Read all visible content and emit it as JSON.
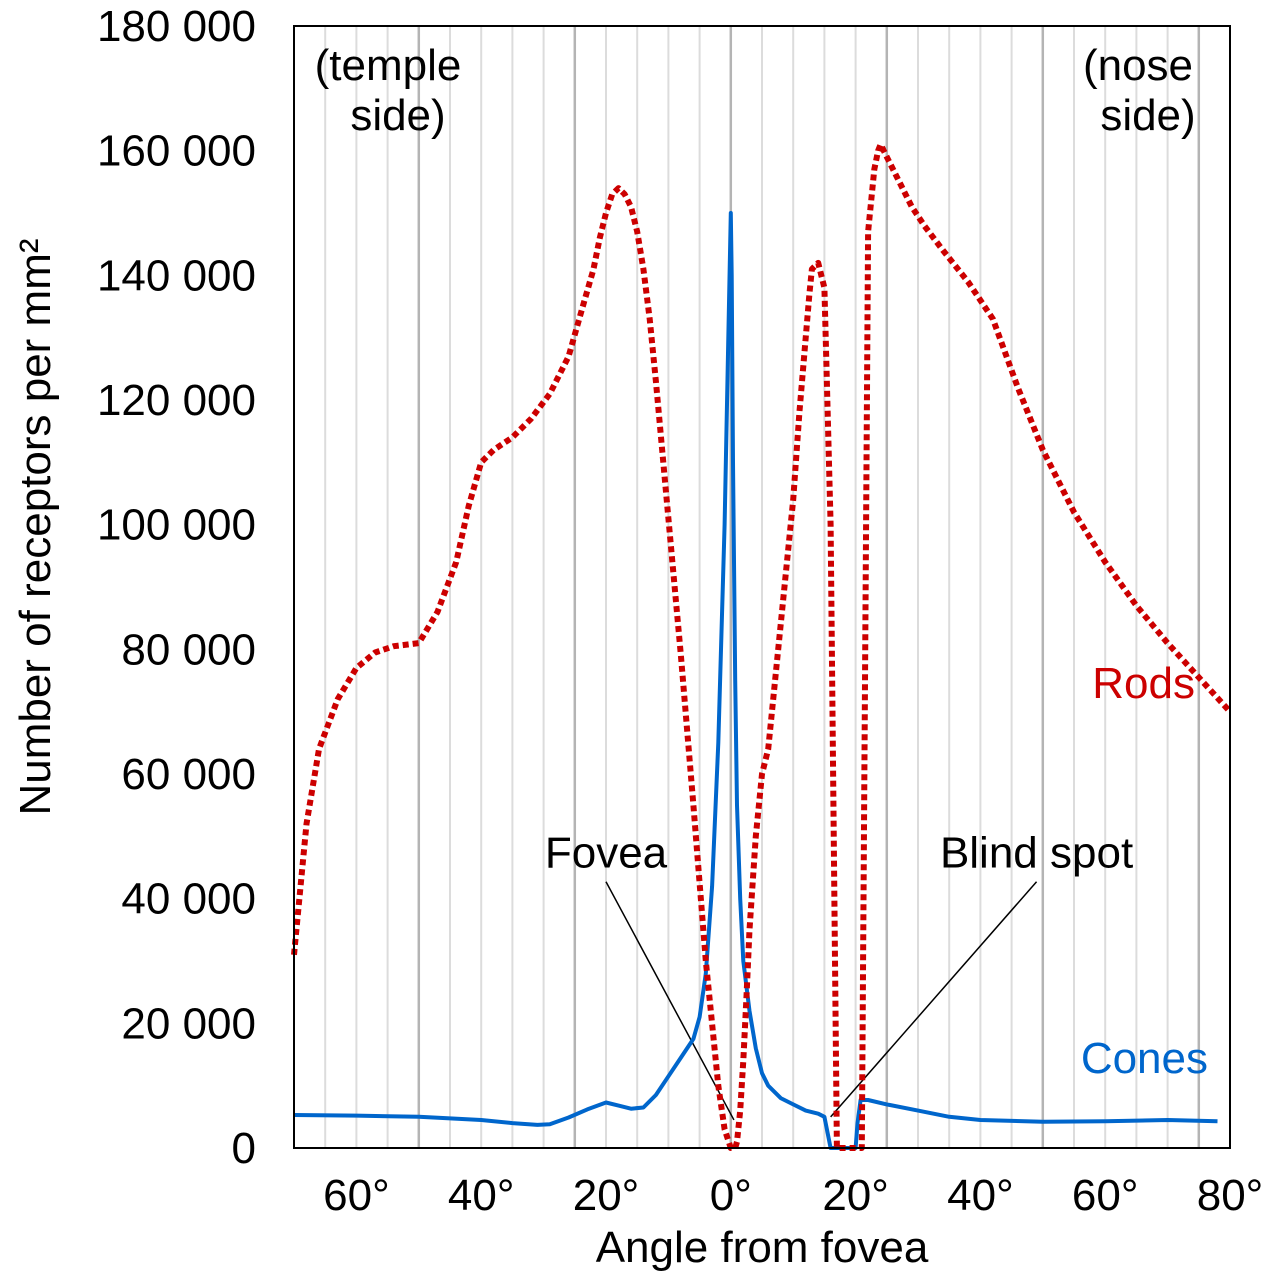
{
  "chart_data": {
    "type": "line",
    "xlabel": "Angle from fovea",
    "ylabel": "Number of receptors per mm²",
    "xlim": [
      -70,
      80
    ],
    "ylim": [
      0,
      180000
    ],
    "grid": true,
    "y_ticks": [
      {
        "value": 0,
        "label": "0"
      },
      {
        "value": 20000,
        "label": "20 000"
      },
      {
        "value": 40000,
        "label": "40 000"
      },
      {
        "value": 60000,
        "label": "60 000"
      },
      {
        "value": 80000,
        "label": "80 000"
      },
      {
        "value": 100000,
        "label": "100 000"
      },
      {
        "value": 120000,
        "label": "120 000"
      },
      {
        "value": 140000,
        "label": "140 000"
      },
      {
        "value": 160000,
        "label": "160 000"
      },
      {
        "value": 180000,
        "label": "180 000"
      }
    ],
    "x_ticks": [
      {
        "value": -60,
        "label": "60°"
      },
      {
        "value": -40,
        "label": "40°"
      },
      {
        "value": -20,
        "label": "20°"
      },
      {
        "value": 0,
        "label": "0°"
      },
      {
        "value": 20,
        "label": "20°"
      },
      {
        "value": 40,
        "label": "40°"
      },
      {
        "value": 60,
        "label": "60°"
      },
      {
        "value": 80,
        "label": "80°"
      }
    ],
    "side_labels": {
      "left": [
        "(temple",
        "side)"
      ],
      "right": [
        "(nose",
        "side)"
      ]
    },
    "annotations": [
      {
        "text": "Fovea",
        "label_x": -20,
        "label_y": 44000,
        "target_x": 0.5,
        "target_y": 4500
      },
      {
        "text": "Blind spot",
        "label_x": 49,
        "label_y": 44000,
        "target_x": 16,
        "target_y": 5000
      }
    ],
    "series": [
      {
        "name": "Rods",
        "color": "#cc0000",
        "style": "dotted",
        "x": [
          -70,
          -68,
          -66,
          -63,
          -60,
          -57,
          -54,
          -50,
          -47,
          -44,
          -42,
          -40,
          -38,
          -35,
          -32,
          -29,
          -26,
          -24,
          -22,
          -21,
          -20,
          -19,
          -18,
          -17,
          -16,
          -15,
          -14,
          -13,
          -12,
          -10,
          -8,
          -6,
          -4,
          -2,
          -1,
          0,
          0.7,
          1,
          1.5,
          2,
          2.5,
          3,
          4,
          5,
          6,
          8,
          10,
          11,
          12,
          12.6,
          13,
          14,
          15,
          16,
          17,
          18,
          19,
          20,
          21,
          22,
          23,
          23.6,
          24,
          25,
          27,
          29,
          31,
          34,
          38,
          42,
          46,
          50,
          55,
          60,
          65,
          70,
          75,
          80
        ],
        "y": [
          31000,
          52000,
          64000,
          72000,
          77000,
          79500,
          80500,
          81000,
          86000,
          94000,
          103000,
          110000,
          112000,
          114000,
          117000,
          121000,
          127000,
          134000,
          141000,
          146000,
          150000,
          153000,
          154000,
          153000,
          151000,
          147000,
          141000,
          133000,
          123000,
          101000,
          79000,
          55000,
          30000,
          10000,
          3000,
          0,
          0,
          1000,
          6000,
          14000,
          24000,
          35000,
          50000,
          60000,
          64000,
          84000,
          104000,
          118000,
          130000,
          137000,
          141000,
          142000,
          138000,
          100000,
          0,
          0,
          0,
          0,
          0,
          147000,
          157000,
          160000,
          161000,
          159000,
          155000,
          151000,
          148000,
          144000,
          139000,
          133000,
          122000,
          112000,
          102000,
          94000,
          87000,
          81000,
          75500,
          70000
        ]
      },
      {
        "name": "Cones",
        "color": "#0066cc",
        "style": "solid",
        "x": [
          -70,
          -60,
          -50,
          -40,
          -35,
          -31,
          -29,
          -26,
          -23,
          -20,
          -18,
          -16,
          -14,
          -12,
          -10,
          -8,
          -6,
          -5,
          -4,
          -3,
          -2,
          -1,
          -0.5,
          0,
          0.15,
          0.35,
          0.7,
          1,
          1.5,
          2,
          3,
          4,
          5,
          6,
          8,
          10,
          12,
          14,
          15,
          16,
          17,
          18,
          19,
          20,
          20.3,
          20.8,
          22,
          25,
          30,
          35,
          40,
          50,
          60,
          70,
          78
        ],
        "y": [
          5300,
          5200,
          5000,
          4500,
          4000,
          3700,
          3800,
          4900,
          6200,
          7300,
          6800,
          6300,
          6500,
          8500,
          11500,
          14500,
          17500,
          21000,
          28000,
          42000,
          65000,
          100000,
          125000,
          150000,
          140000,
          110000,
          75000,
          55000,
          40000,
          30000,
          22000,
          16000,
          12000,
          10000,
          8000,
          7000,
          6000,
          5500,
          5000,
          0,
          0,
          0,
          0,
          0,
          4000,
          7700,
          7700,
          7000,
          6000,
          5000,
          4500,
          4200,
          4300,
          4500,
          4300
        ]
      }
    ]
  }
}
